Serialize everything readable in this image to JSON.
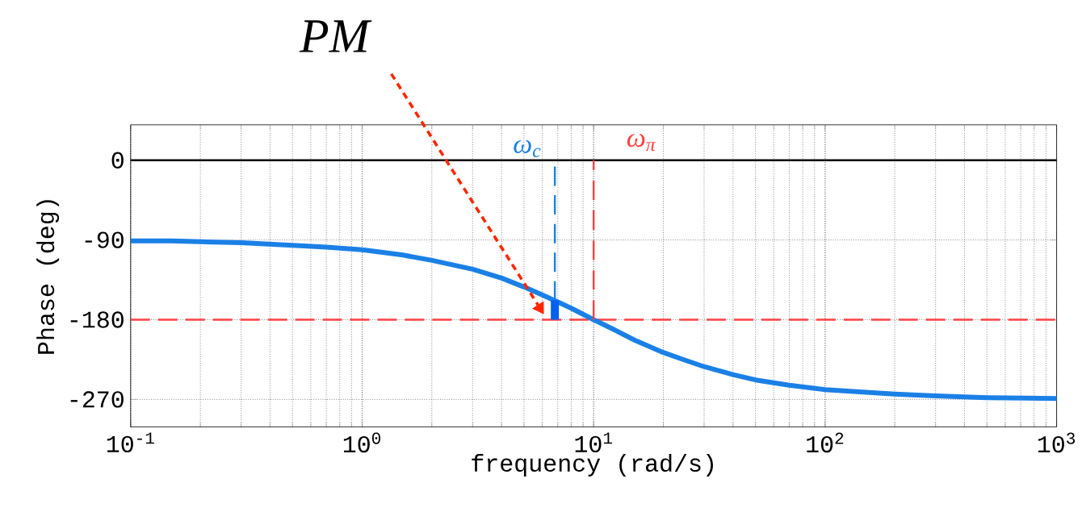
{
  "chart_data": {
    "type": "line",
    "xlabel": "frequency (rad/s)",
    "ylabel": "Phase (deg)",
    "log": "x",
    "grid": true,
    "xlim": [
      0.1,
      1000
    ],
    "ylim": [
      -301,
      40
    ],
    "xticks": [
      {
        "value": 0.1,
        "label": "10$^{-1}$"
      },
      {
        "value": 1,
        "label": "10$^{0}$"
      },
      {
        "value": 10,
        "label": "10$^{1}$"
      },
      {
        "value": 100,
        "label": "10$^{2}$"
      },
      {
        "value": 1000,
        "label": "10$^{3}$"
      }
    ],
    "yticks": [
      0,
      -90,
      -180,
      -270
    ],
    "series": [
      {
        "color": "#1a80e6",
        "x": [
          0.1,
          0.15,
          0.2,
          0.3,
          0.5,
          0.7,
          1,
          1.5,
          2,
          3,
          4,
          5,
          6,
          7,
          8,
          10,
          12,
          15,
          20,
          25,
          30,
          40,
          50,
          70,
          100,
          150,
          200,
          300,
          500,
          1000
        ],
        "values": [
          -91,
          -91,
          -92,
          -93,
          -96,
          -98,
          -101,
          -107,
          -113,
          -123,
          -133,
          -143,
          -152,
          -160,
          -167,
          -180,
          -190,
          -203,
          -217,
          -226,
          -233,
          -242,
          -248,
          -254,
          -259,
          -262,
          -264,
          -266,
          -268,
          -269
        ]
      },
      {
        "name": "ω$_{c}$",
        "color": "#1a80e6",
        "line_style": "dashed",
        "x": [
          6.8,
          6.8
        ],
        "values": [
          -7,
          -180
        ]
      },
      {
        "color": "#0060f0",
        "x": [
          6.8,
          6.8
        ],
        "values": [
          -180,
          -158
        ]
      },
      {
        "name": "ω$_{π}$",
        "color": "#ff4040",
        "line_style": "dashed",
        "x": [
          10,
          10
        ],
        "values": [
          -180,
          0
        ]
      }
    ],
    "ref_lines": [
      {
        "axis": "y",
        "value": 0,
        "color": "#000000",
        "line_style": "solid"
      },
      {
        "axis": "y",
        "value": -180,
        "color": "#ff4040",
        "line_style": "dashed"
      }
    ],
    "annotations": [
      "PM"
    ]
  }
}
